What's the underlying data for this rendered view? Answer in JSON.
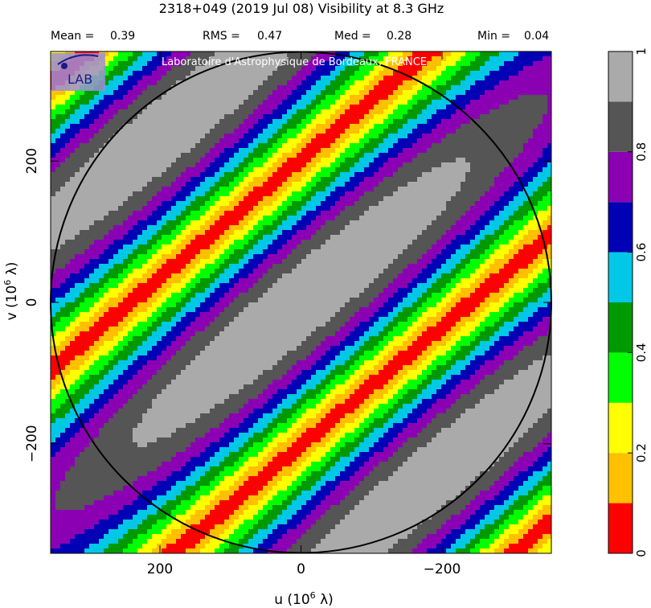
{
  "header": {
    "title": "2318+049   (2019 Jul 08)   Visibility at  8.3 GHz",
    "stats": [
      {
        "label": "Mean =",
        "value": "0.39"
      },
      {
        "label": "RMS =",
        "value": "0.47"
      },
      {
        "label": "Med =",
        "value": "0.28"
      },
      {
        "label": "Min =",
        "value": "0.04"
      }
    ]
  },
  "logo": {
    "text": "LAB",
    "credit": "Laboratoire d'Astrophysique de Bordeaux, FRANCE"
  },
  "chart_data": {
    "type": "heatmap",
    "title": "2318+049   (2019 Jul 08)   Visibility at  8.3 GHz",
    "xlabel": "u  (10",
    "xlabel_sup": "6",
    "xlabel_unit": " λ)",
    "ylabel": "v  (10",
    "ylabel_sup": "6",
    "ylabel_unit": " λ)",
    "x_reversed": true,
    "xlim": [
      355,
      -355
    ],
    "ylim": [
      -355,
      355
    ],
    "x_ticks": [
      200,
      0,
      -200
    ],
    "x_tick_labels": [
      "200",
      "0",
      "−200"
    ],
    "y_ticks": [
      200,
      0,
      -200
    ],
    "y_tick_labels": [
      "200",
      "0",
      "−200"
    ],
    "circle_radius": 355,
    "colorbar": {
      "min": 0,
      "max": 1,
      "ticks": [
        0,
        0.2,
        0.4,
        0.6,
        0.8,
        1
      ],
      "tick_labels": [
        "0",
        "0.2",
        "0.4",
        "0.6",
        "0.8",
        "1"
      ],
      "levels": [
        {
          "from": 0.0,
          "to": 0.1,
          "color": "#ff0000"
        },
        {
          "from": 0.1,
          "to": 0.2,
          "color": "#ffc000"
        },
        {
          "from": 0.2,
          "to": 0.3,
          "color": "#ffff00"
        },
        {
          "from": 0.3,
          "to": 0.4,
          "color": "#00ff00"
        },
        {
          "from": 0.4,
          "to": 0.5,
          "color": "#009900"
        },
        {
          "from": 0.5,
          "to": 0.6,
          "color": "#00c8e6"
        },
        {
          "from": 0.6,
          "to": 0.7,
          "color": "#0000b4"
        },
        {
          "from": 0.7,
          "to": 0.8,
          "color": "#8c00b4"
        },
        {
          "from": 0.8,
          "to": 0.9,
          "color": "#555555"
        },
        {
          "from": 0.9,
          "to": 1.0,
          "color": "#aaaaaa"
        }
      ]
    },
    "model": {
      "description_of_pattern": "diagonal fringe bands",
      "band_direction_deg": 140,
      "fringe_period": 620,
      "envelope_major": 620,
      "envelope_minor": 260
    }
  }
}
